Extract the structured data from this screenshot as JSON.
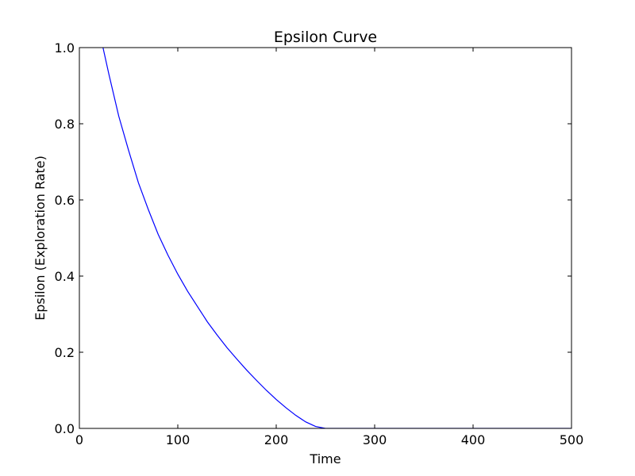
{
  "chart_data": {
    "type": "line",
    "title": "Epsilon Curve",
    "xlabel": "Time",
    "ylabel": "Epsilon (Exploration Rate)",
    "xlim": [
      0,
      500
    ],
    "ylim": [
      0.0,
      1.0
    ],
    "xticks": [
      "0",
      "100",
      "200",
      "300",
      "400",
      "500"
    ],
    "yticks": [
      "0.0",
      "0.2",
      "0.4",
      "0.6",
      "0.8",
      "1.0"
    ],
    "grid": false,
    "series": [
      {
        "color": "#0000ff",
        "x": [
          24,
          30,
          40,
          50,
          60,
          70,
          80,
          90,
          100,
          110,
          120,
          130,
          140,
          150,
          160,
          170,
          180,
          190,
          200,
          210,
          220,
          230,
          240,
          250,
          300,
          350,
          400,
          450,
          500
        ],
        "y": [
          1.0,
          0.93,
          0.82,
          0.73,
          0.645,
          0.575,
          0.51,
          0.455,
          0.405,
          0.36,
          0.32,
          0.28,
          0.245,
          0.212,
          0.182,
          0.153,
          0.126,
          0.1,
          0.076,
          0.054,
          0.034,
          0.017,
          0.005,
          0.0,
          0.0,
          0.0,
          0.0,
          0.0,
          0.0
        ]
      }
    ]
  }
}
